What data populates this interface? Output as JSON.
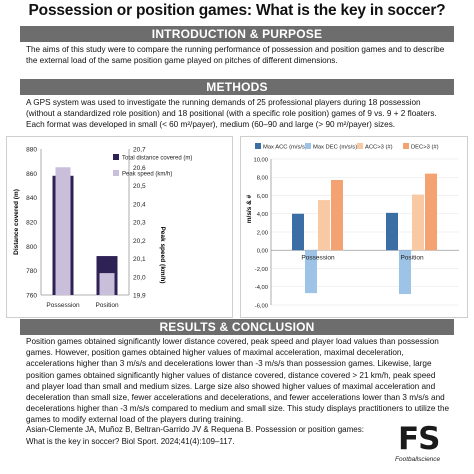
{
  "title": "Possession or position games: What is the key in soccer?",
  "sections": {
    "intro_heading": "INTRODUCTION & PURPOSE",
    "intro_text": "The aims of this study were to compare the running performance of possession and position games and to describe the external load of the same position game played on pitches of different dimensions.",
    "methods_heading": "METHODS",
    "methods_text": "A GPS system was used to investigate the running demands of 25 professional players during 18 possession (without a standardized role position) and 18 positional (with a specific role position) games of 9 vs. 9 + 2 floaters. Each format was developed in small (< 60 m²/payer), medium (60–90 and large (> 90 m²/payer) sizes.",
    "results_heading": "RESULTS & CONCLUSION",
    "results_text": "Position games obtained significantly lower distance covered, peak speed and player load values than possession games. However, position games obtained higher values of maximal acceleration, maximal deceleration, accelerations higher than 3 m/s/s and decelerations lower than -3 m/s/s than possession games. Likewise, large position games obtained significantly higher values of distance covered, distance covered > 21 km/h, peak speed and player load than small and medium sizes. Large size also showed higher values of maximal acceleration and deceleration than small size, fewer accelerations and decelerations, and fewer accelerations lower than 3 m/s/s and decelerations higher than -3 m/s/s compared to medium and small size. This study displays practitioners to utilize the games to modify external load of the players during training."
  },
  "citation": "Asian-Clemente JA, Muñoz B, Beltran-Garrido JV & Requena B. Possession or position games: What is the key in soccer? Biol Sport. 2024;41(4):109–117.",
  "logo": {
    "mark": "FS",
    "sub": "Footballscience"
  },
  "colors": {
    "banner": "#6d6d6d",
    "distance": "#2e2255",
    "peak_speed": "#c9bfdb",
    "max_acc": "#3a6ea5",
    "max_dec": "#9dc3e6",
    "acc3": "#f9c9a4",
    "dec3": "#f5a273"
  },
  "chart_data": [
    {
      "type": "bar",
      "categories": [
        "Possession",
        "Position"
      ],
      "series": [
        {
          "name": "Total distance covered (m)",
          "axis": "left",
          "values": [
            858,
            792
          ]
        },
        {
          "name": "Peak speed (km/h)",
          "axis": "right",
          "values": [
            20.6,
            20.02
          ]
        }
      ],
      "ylabel": "Distance covered (m)",
      "ylim": [
        760,
        880
      ],
      "yticks": [
        "760",
        "780",
        "800",
        "820",
        "840",
        "860",
        "880"
      ],
      "y2label": "Peak speed (km/h)",
      "y2lim": [
        19.9,
        20.7
      ],
      "y2ticks": [
        "20,7",
        "20,6",
        "20,5",
        "20,4",
        "20,3",
        "20,2",
        "20,1",
        "20,0",
        "19,9"
      ],
      "legend": "top-right"
    },
    {
      "type": "bar",
      "categories": [
        "Possession",
        "Position"
      ],
      "series": [
        {
          "name": "Max ACC (m/s/s)",
          "values": [
            4.0,
            4.1
          ]
        },
        {
          "name": "Max DEC (m/s/s)",
          "values": [
            -4.7,
            -4.8
          ]
        },
        {
          "name": "ACC>3 (#)",
          "values": [
            5.5,
            6.1
          ]
        },
        {
          "name": "DEC>3 (#)",
          "values": [
            7.7,
            8.4
          ]
        }
      ],
      "ylabel": "m/s/s & #",
      "ylim": [
        -6,
        10
      ],
      "yticks": [
        "10,00",
        "8,00",
        "6,00",
        "4,00",
        "2,00",
        "0,00",
        "-2,00",
        "-4,00",
        "-6,00"
      ],
      "legend": "top"
    }
  ]
}
